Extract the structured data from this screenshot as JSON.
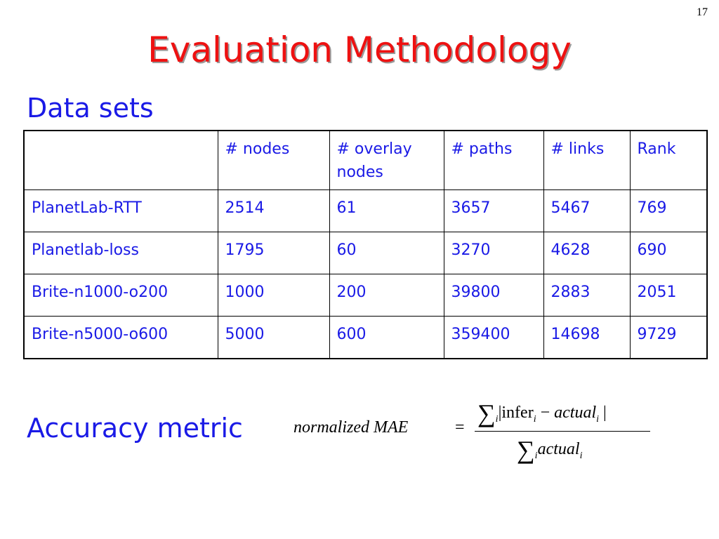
{
  "slide_number": "17",
  "title": "Evaluation Methodology",
  "datasets_heading": "Data sets",
  "table": {
    "headers": [
      "",
      "# nodes",
      "# overlay nodes",
      "# paths",
      "# links",
      "Rank"
    ],
    "rows": [
      [
        "PlanetLab-RTT",
        "2514",
        "61",
        "3657",
        "5467",
        "769"
      ],
      [
        "Planetlab-loss",
        "1795",
        "60",
        "3270",
        "4628",
        "690"
      ],
      [
        "Brite-n1000-o200",
        "1000",
        "200",
        "39800",
        "2883",
        "2051"
      ],
      [
        "Brite-n5000-o600",
        "5000",
        "600",
        "359400",
        "14698",
        "9729"
      ]
    ]
  },
  "metric_heading": "Accuracy metric",
  "formula": {
    "lhs": "normalized MAE",
    "equals": "=",
    "sigma": "∑",
    "index": "i",
    "numerator_open": "|",
    "infer": "infer",
    "minus": " − ",
    "actual": "actual",
    "numerator_close": " |"
  }
}
